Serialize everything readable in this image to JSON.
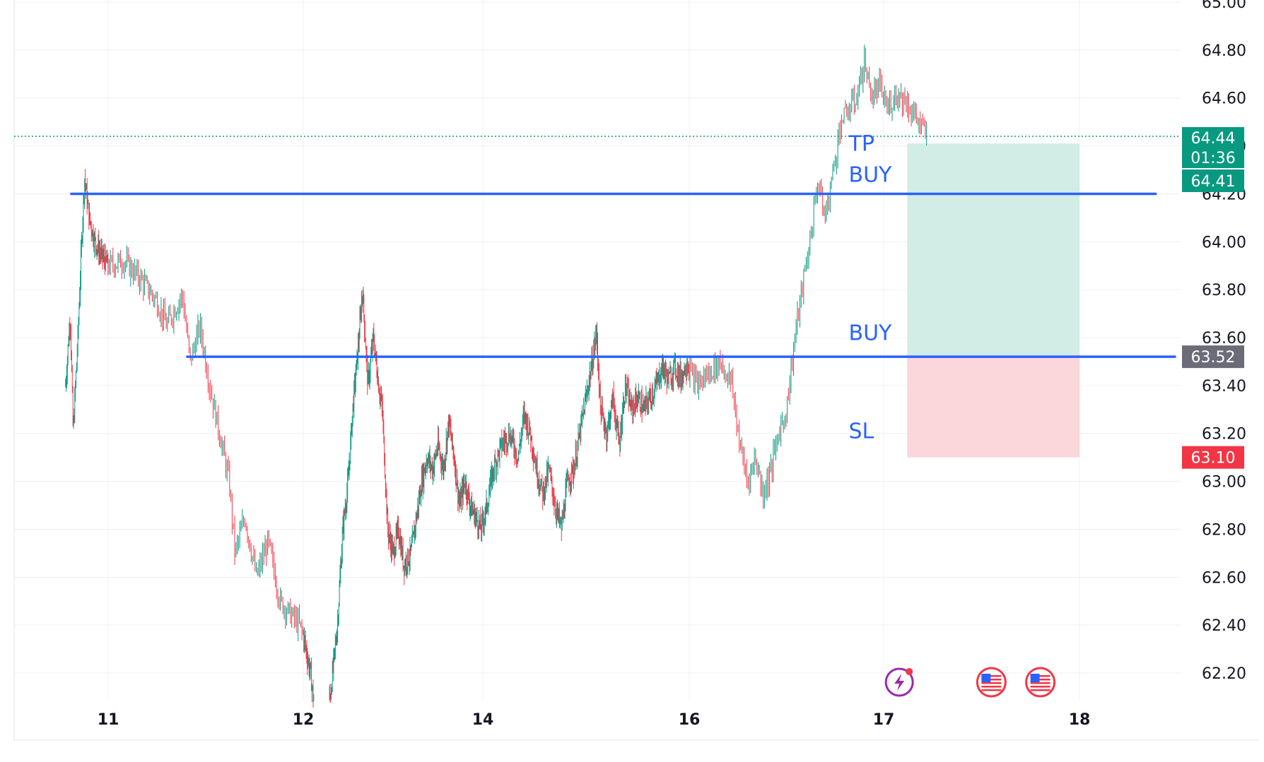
{
  "chart_data": {
    "type": "candlestick",
    "ylim": [
      62.05,
      65.0
    ],
    "y_ticks": [
      "65.00",
      "64.80",
      "64.60",
      "64.40",
      "64.20",
      "64.00",
      "63.80",
      "63.60",
      "63.40",
      "63.20",
      "63.00",
      "62.80",
      "62.60",
      "62.40",
      "62.20"
    ],
    "x_ticks": [
      {
        "label": "11",
        "day": 11
      },
      {
        "label": "12",
        "day": 12
      },
      {
        "label": "14",
        "day": 14
      },
      {
        "label": "16",
        "day": 16
      },
      {
        "label": "17",
        "day": 17
      },
      {
        "label": "18",
        "day": 18
      }
    ],
    "grid": true,
    "price_path": [
      [
        10.55,
        63.4
      ],
      [
        10.6,
        63.7
      ],
      [
        10.63,
        63.2
      ],
      [
        10.68,
        63.6
      ],
      [
        10.72,
        64.0
      ],
      [
        10.75,
        64.27
      ],
      [
        10.8,
        64.1
      ],
      [
        10.86,
        64.0
      ],
      [
        10.92,
        63.95
      ],
      [
        11.0,
        63.9
      ],
      [
        11.08,
        63.92
      ],
      [
        11.16,
        63.85
      ],
      [
        11.25,
        63.75
      ],
      [
        11.3,
        63.65
      ],
      [
        11.38,
        63.78
      ],
      [
        11.42,
        63.5
      ],
      [
        11.47,
        63.65
      ],
      [
        11.52,
        63.4
      ],
      [
        11.57,
        63.2
      ],
      [
        11.62,
        63.0
      ],
      [
        11.65,
        62.7
      ],
      [
        11.7,
        62.85
      ],
      [
        11.76,
        62.6
      ],
      [
        11.82,
        62.75
      ],
      [
        11.88,
        62.5
      ],
      [
        11.93,
        62.45
      ],
      [
        11.98,
        62.4
      ],
      [
        12.03,
        62.3
      ],
      [
        12.08,
        62.2
      ],
      [
        12.11,
        62.1
      ],
      [
        12.3,
        62.1
      ],
      [
        12.38,
        62.4
      ],
      [
        12.44,
        62.8
      ],
      [
        12.5,
        63.0
      ],
      [
        12.55,
        63.3
      ],
      [
        12.62,
        63.6
      ],
      [
        12.66,
        63.8
      ],
      [
        12.72,
        63.4
      ],
      [
        12.78,
        63.6
      ],
      [
        12.84,
        63.4
      ],
      [
        12.88,
        63.3
      ],
      [
        12.94,
        62.8
      ],
      [
        13.0,
        62.7
      ],
      [
        13.06,
        62.8
      ],
      [
        13.12,
        62.65
      ],
      [
        13.2,
        62.7
      ],
      [
        13.26,
        62.85
      ],
      [
        13.32,
        63.0
      ],
      [
        13.38,
        63.1
      ],
      [
        13.44,
        63.05
      ],
      [
        13.5,
        63.15
      ],
      [
        13.56,
        63.05
      ],
      [
        13.62,
        63.25
      ],
      [
        13.68,
        63.1
      ],
      [
        13.74,
        62.9
      ],
      [
        13.8,
        63.0
      ],
      [
        13.86,
        62.9
      ],
      [
        13.92,
        62.85
      ],
      [
        13.98,
        62.8
      ],
      [
        14.04,
        62.9
      ],
      [
        14.1,
        63.05
      ],
      [
        14.18,
        63.15
      ],
      [
        14.26,
        63.2
      ],
      [
        14.34,
        63.1
      ],
      [
        14.4,
        63.28
      ],
      [
        14.46,
        63.2
      ],
      [
        14.52,
        63.05
      ],
      [
        14.58,
        62.95
      ],
      [
        14.64,
        63.05
      ],
      [
        14.7,
        62.9
      ],
      [
        14.76,
        62.8
      ],
      [
        14.82,
        63.0
      ],
      [
        14.88,
        63.05
      ],
      [
        14.94,
        63.2
      ],
      [
        15.0,
        63.35
      ],
      [
        15.06,
        63.5
      ],
      [
        15.1,
        63.62
      ],
      [
        15.14,
        63.3
      ],
      [
        15.2,
        63.2
      ],
      [
        15.26,
        63.35
      ],
      [
        15.32,
        63.15
      ],
      [
        15.38,
        63.4
      ],
      [
        15.44,
        63.3
      ],
      [
        15.5,
        63.35
      ],
      [
        15.56,
        63.3
      ],
      [
        15.62,
        63.35
      ],
      [
        15.68,
        63.4
      ],
      [
        15.74,
        63.48
      ],
      [
        15.8,
        63.42
      ],
      [
        15.86,
        63.48
      ],
      [
        15.92,
        63.43
      ],
      [
        15.98,
        63.5
      ],
      [
        16.04,
        63.4
      ],
      [
        16.1,
        63.45
      ],
      [
        16.16,
        63.5
      ],
      [
        16.22,
        63.4
      ],
      [
        16.26,
        63.15
      ],
      [
        16.3,
        63.0
      ],
      [
        16.34,
        63.1
      ],
      [
        16.38,
        62.95
      ],
      [
        16.42,
        63.05
      ],
      [
        16.46,
        63.2
      ],
      [
        16.5,
        63.3
      ],
      [
        16.55,
        63.65
      ],
      [
        16.58,
        63.8
      ],
      [
        16.62,
        64.0
      ],
      [
        16.66,
        64.25
      ],
      [
        16.7,
        64.1
      ],
      [
        16.74,
        64.3
      ],
      [
        16.78,
        64.5
      ],
      [
        16.82,
        64.55
      ],
      [
        16.86,
        64.6
      ],
      [
        16.9,
        64.75
      ],
      [
        16.94,
        64.6
      ],
      [
        16.98,
        64.65
      ],
      [
        17.02,
        64.55
      ],
      [
        17.06,
        64.62
      ],
      [
        17.1,
        64.6
      ],
      [
        17.14,
        64.55
      ],
      [
        17.18,
        64.5
      ],
      [
        17.22,
        64.44
      ]
    ],
    "price_lines": [
      {
        "label": "BUY",
        "value": 64.2,
        "from_day": 10.6,
        "to_day": 18.4
      },
      {
        "label": "BUY",
        "value": 63.52,
        "from_day": 11.4,
        "to_day": 18.5
      }
    ],
    "annotations": [
      {
        "text": "TP",
        "day": 16.82,
        "value": 64.38
      },
      {
        "text": "BUY",
        "day": 16.82,
        "value": 64.25
      },
      {
        "text": "BUY",
        "day": 16.82,
        "value": 63.59
      },
      {
        "text": "SL",
        "day": 16.82,
        "value": 63.18
      }
    ],
    "position": {
      "from_day": 17.12,
      "to_day": 18.0,
      "take_profit": 64.41,
      "entry": 63.52,
      "stop_loss": 63.1
    },
    "last_price": 64.44,
    "countdown": "01:36",
    "price_tags": [
      {
        "text": "64.44",
        "value": 64.44,
        "color": "#089981"
      },
      {
        "text": "01:36",
        "value": 64.44,
        "color": "#089981"
      },
      {
        "text": "64.41",
        "value": 64.41,
        "color": "#089981"
      },
      {
        "text": "63.52",
        "value": 63.52,
        "color": "#6a6d78"
      },
      {
        "text": "63.10",
        "value": 63.1,
        "color": "#f23645"
      }
    ],
    "event_icons": [
      {
        "name": "lightning-event-icon",
        "day": 17.08
      },
      {
        "name": "us-flag-event-icon",
        "day": 17.55
      },
      {
        "name": "us-flag-event-icon",
        "day": 17.8
      }
    ]
  },
  "colors": {
    "up": "#089981",
    "down": "#f23645",
    "line": "#2962ff",
    "grid": "#eef0f3",
    "profit_zone": "#d2ede6",
    "loss_zone": "#fbd6da"
  }
}
